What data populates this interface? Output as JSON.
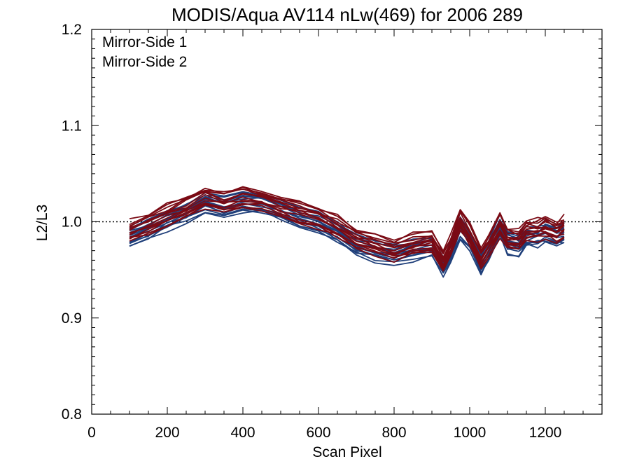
{
  "chart_data": {
    "type": "line",
    "title": "MODIS/Aqua AV114 nLw(469) for 2006 289",
    "xlabel": "Scan Pixel",
    "ylabel": "L2/L3",
    "xlim": [
      0,
      1350
    ],
    "ylim": [
      0.8,
      1.2
    ],
    "xticks": [
      0,
      200,
      400,
      600,
      800,
      1000,
      1200
    ],
    "yticks": [
      0.8,
      0.9,
      1.0,
      1.1,
      1.2
    ],
    "xtick_labels": [
      "0",
      "200",
      "400",
      "600",
      "800",
      "1000",
      "1200"
    ],
    "ytick_labels": [
      "0.8",
      "0.9",
      "1.0",
      "1.1",
      "1.2"
    ],
    "reference_line": 1.0,
    "legend_position": "top-left",
    "colors": {
      "Mirror-Side 1": "#1f3f7a",
      "Mirror-Side 2": "#7a0a14"
    },
    "x": [
      100,
      150,
      200,
      250,
      300,
      350,
      400,
      450,
      500,
      550,
      600,
      650,
      700,
      750,
      800,
      850,
      900,
      930,
      950,
      975,
      1000,
      1030,
      1050,
      1080,
      1100,
      1130,
      1150,
      1180,
      1200,
      1230,
      1250
    ],
    "series": [
      {
        "name": "Mirror-Side 1",
        "values": [
          0.985,
          0.993,
          1.002,
          1.01,
          1.02,
          1.015,
          1.022,
          1.02,
          1.012,
          1.005,
          1.0,
          0.99,
          0.975,
          0.97,
          0.965,
          0.97,
          0.975,
          0.955,
          0.968,
          0.992,
          0.982,
          0.958,
          0.97,
          0.995,
          0.978,
          0.975,
          0.985,
          0.985,
          0.99,
          0.985,
          0.988
        ]
      },
      {
        "name": "Mirror-Side 2",
        "values": [
          0.99,
          0.998,
          1.007,
          1.016,
          1.026,
          1.021,
          1.026,
          1.024,
          1.016,
          1.01,
          1.005,
          0.995,
          0.982,
          0.976,
          0.97,
          0.976,
          0.98,
          0.958,
          0.975,
          1.002,
          0.987,
          0.964,
          0.975,
          0.996,
          0.982,
          0.98,
          0.99,
          0.992,
          0.995,
          0.99,
          0.995
        ]
      }
    ]
  }
}
